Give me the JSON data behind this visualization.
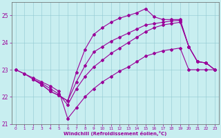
{
  "xlabel": "Windchill (Refroidissement éolien,°C)",
  "bg_color": "#c8eef0",
  "line_color": "#990099",
  "ylim": [
    21.0,
    25.5
  ],
  "xlim": [
    -0.5,
    23.5
  ],
  "yticks": [
    21,
    22,
    23,
    24,
    25
  ],
  "xticks": [
    0,
    1,
    2,
    3,
    4,
    5,
    6,
    7,
    8,
    9,
    10,
    11,
    12,
    13,
    14,
    15,
    16,
    17,
    18,
    19,
    20,
    21,
    22,
    23
  ],
  "line1_x": [
    0,
    1,
    2,
    3,
    4,
    5,
    6,
    7,
    8,
    9,
    10,
    11,
    12,
    13,
    14,
    15,
    16,
    17,
    18,
    19,
    20,
    21,
    22,
    23
  ],
  "line1_y": [
    23.0,
    22.85,
    22.7,
    22.55,
    22.4,
    22.2,
    21.2,
    21.6,
    22.0,
    22.3,
    22.55,
    22.75,
    22.95,
    23.1,
    23.3,
    23.5,
    23.6,
    23.7,
    23.75,
    23.8,
    23.0,
    23.0,
    23.0,
    23.0
  ],
  "line2_x": [
    0,
    1,
    2,
    3,
    4,
    5,
    6,
    7,
    8,
    9,
    10,
    11,
    12,
    13,
    14,
    15,
    16,
    17,
    18,
    19,
    20,
    21,
    22,
    23
  ],
  "line2_y": [
    23.0,
    22.85,
    22.65,
    22.5,
    22.3,
    22.1,
    21.7,
    22.3,
    22.75,
    23.1,
    23.35,
    23.6,
    23.8,
    24.0,
    24.2,
    24.4,
    24.55,
    24.65,
    24.7,
    24.75,
    23.85,
    23.3,
    23.25,
    23.0
  ],
  "line3_x": [
    2,
    3,
    4,
    5,
    6,
    7,
    8,
    9,
    10,
    11,
    12,
    13,
    14,
    15,
    16,
    17,
    18,
    19,
    20,
    21,
    22,
    23
  ],
  "line3_y": [
    22.65,
    22.45,
    22.2,
    22.05,
    21.85,
    22.9,
    23.75,
    24.3,
    24.55,
    24.75,
    24.9,
    25.0,
    25.1,
    25.25,
    24.95,
    24.85,
    24.85,
    24.85,
    23.85,
    23.3,
    23.25,
    23.0
  ],
  "line4_x": [
    2,
    3,
    4,
    5,
    6,
    7,
    8,
    9,
    10,
    11,
    12,
    13,
    14,
    15,
    16,
    17,
    18,
    19,
    20,
    21,
    22,
    23
  ],
  "line4_y": [
    22.65,
    22.45,
    22.2,
    22.05,
    21.85,
    22.55,
    23.15,
    23.65,
    23.85,
    24.05,
    24.2,
    24.35,
    24.5,
    24.65,
    24.7,
    24.75,
    24.8,
    24.82,
    23.85,
    23.3,
    23.25,
    23.0
  ]
}
